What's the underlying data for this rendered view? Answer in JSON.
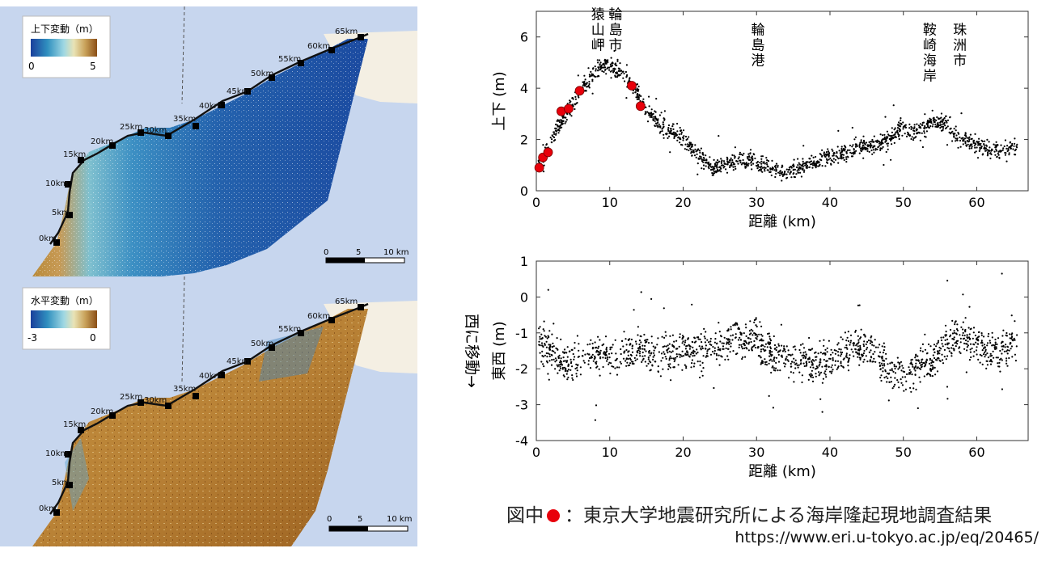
{
  "maps": [
    {
      "id": "vertical",
      "legend_title": "上下変動（m）",
      "legend_min": "0",
      "legend_max": "5",
      "legend_colors": [
        "#1a3f9b",
        "#2f8fbf",
        "#9fd8e3",
        "#e9e3b5",
        "#c9a25a",
        "#8a4e16"
      ],
      "km_labels": [
        "0km",
        "5km",
        "10km",
        "15km",
        "20km",
        "25km",
        "30km",
        "35km",
        "40km",
        "45km",
        "50km",
        "55km",
        "60km",
        "65km"
      ],
      "scale_labels": [
        "0",
        "5",
        "10 km"
      ]
    },
    {
      "id": "horizontal",
      "legend_title": "水平変動（m）",
      "legend_min": "-3",
      "legend_max": "0",
      "legend_colors": [
        "#1a3f9b",
        "#2f8fbf",
        "#9fd8e3",
        "#e9e3b5",
        "#c9a25a",
        "#8a4e16"
      ],
      "km_labels": [
        "0km",
        "5km",
        "10km",
        "15km",
        "20km",
        "25km",
        "30km",
        "35km",
        "40km",
        "45km",
        "50km",
        "55km",
        "60km",
        "65km"
      ],
      "scale_labels": [
        "0",
        "5",
        "10 km"
      ]
    }
  ],
  "chart_data": [
    {
      "type": "scatter",
      "xlabel": "距離 (km)",
      "ylabel": "上下 (m)",
      "xlim": [
        0,
        67
      ],
      "ylim": [
        0,
        7
      ],
      "xticks": [
        "0",
        "10",
        "20",
        "30",
        "40",
        "50",
        "60"
      ],
      "yticks": [
        "0",
        "2",
        "4",
        "6"
      ],
      "annotations": [
        {
          "text": "猿山岬",
          "x": 8.4,
          "y": 6.7
        },
        {
          "text": "輪島市",
          "x": 10.8,
          "y": 6.7
        },
        {
          "text": "輪島港",
          "x": 30.2,
          "y": 6.1
        },
        {
          "text": "鞍崎海岸",
          "x": 53.6,
          "y": 6.1
        },
        {
          "text": "珠洲市",
          "x": 57.7,
          "y": 6.1
        }
      ],
      "trend": [
        [
          0,
          0.9
        ],
        [
          1,
          1.3
        ],
        [
          3,
          2.5
        ],
        [
          6,
          3.9
        ],
        [
          9,
          4.9
        ],
        [
          11,
          4.8
        ],
        [
          13,
          4.2
        ],
        [
          15,
          3.1
        ],
        [
          17,
          2.5
        ],
        [
          20,
          2.1
        ],
        [
          22,
          1.4
        ],
        [
          24,
          0.8
        ],
        [
          26,
          1.1
        ],
        [
          28,
          1.2
        ],
        [
          30,
          1.1
        ],
        [
          32,
          0.9
        ],
        [
          34,
          0.7
        ],
        [
          36,
          0.9
        ],
        [
          38,
          1.1
        ],
        [
          40,
          1.4
        ],
        [
          42,
          1.5
        ],
        [
          44,
          1.7
        ],
        [
          46,
          1.8
        ],
        [
          48,
          2.0
        ],
        [
          50,
          2.5
        ],
        [
          51,
          2.3
        ],
        [
          52,
          2.3
        ],
        [
          54,
          2.7
        ],
        [
          56,
          2.6
        ],
        [
          58,
          2.0
        ],
        [
          60,
          1.8
        ],
        [
          62,
          1.6
        ],
        [
          64,
          1.6
        ],
        [
          65.5,
          1.7
        ]
      ],
      "spread": 0.25,
      "series": [
        {
          "name": "",
          "marker": "dot",
          "color": "#000000"
        },
        {
          "name": "図中●：東京大学地震研究所による海岸隆起現地調査結果",
          "marker": "circle",
          "color": "#e8000b",
          "points": [
            [
              0.4,
              0.9
            ],
            [
              0.9,
              1.3
            ],
            [
              1.6,
              1.5
            ],
            [
              3.4,
              3.1
            ],
            [
              4.4,
              3.2
            ],
            [
              5.9,
              3.9
            ],
            [
              13.0,
              4.1
            ],
            [
              14.2,
              3.3
            ]
          ]
        }
      ]
    },
    {
      "type": "scatter",
      "xlabel": "距離 (km)",
      "ylabel": "東西 (m)",
      "side_label": "西に移動→",
      "xlim": [
        0,
        67
      ],
      "ylim": [
        -4,
        1
      ],
      "xticks": [
        "0",
        "10",
        "20",
        "30",
        "40",
        "50",
        "60"
      ],
      "yticks": [
        "1",
        "0",
        "-1",
        "-2",
        "-3",
        "-4"
      ],
      "trend": [
        [
          0,
          -1.2
        ],
        [
          2,
          -1.5
        ],
        [
          4,
          -1.9
        ],
        [
          6,
          -1.7
        ],
        [
          8,
          -1.6
        ],
        [
          10,
          -1.6
        ],
        [
          12,
          -1.6
        ],
        [
          14,
          -1.4
        ],
        [
          16,
          -1.6
        ],
        [
          18,
          -1.6
        ],
        [
          20,
          -1.5
        ],
        [
          22,
          -1.5
        ],
        [
          24,
          -1.4
        ],
        [
          26,
          -1.2
        ],
        [
          28,
          -1.1
        ],
        [
          30,
          -1.2
        ],
        [
          32,
          -1.5
        ],
        [
          34,
          -1.7
        ],
        [
          36,
          -1.8
        ],
        [
          38,
          -1.9
        ],
        [
          40,
          -1.8
        ],
        [
          42,
          -1.6
        ],
        [
          44,
          -1.3
        ],
        [
          46,
          -1.5
        ],
        [
          48,
          -2.1
        ],
        [
          50,
          -2.2
        ],
        [
          52,
          -1.9
        ],
        [
          54,
          -1.8
        ],
        [
          56,
          -1.2
        ],
        [
          58,
          -1.0
        ],
        [
          60,
          -1.3
        ],
        [
          62,
          -1.5
        ],
        [
          64,
          -1.4
        ],
        [
          65.5,
          -1.2
        ]
      ],
      "spread": 0.4,
      "series": [
        {
          "name": "",
          "marker": "dot",
          "color": "#000000"
        }
      ]
    }
  ],
  "footer": {
    "note_prefix": "図中",
    "note_text": "：東京大学地震研究所による海岸隆起現地調査結果",
    "url": "https://www.eri.u-tokyo.ac.jp/eq/20465/"
  }
}
